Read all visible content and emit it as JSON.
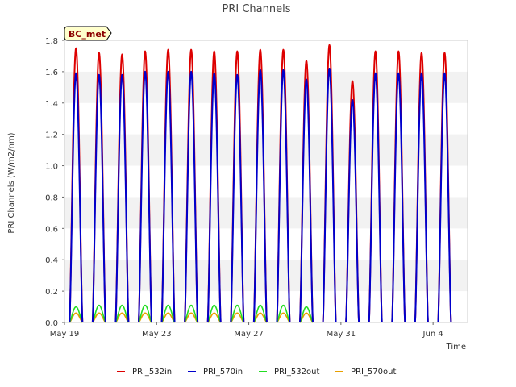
{
  "chart_data": {
    "type": "line",
    "title": "PRI Channels",
    "xlabel": "Time",
    "ylabel": "PRI Channels (W/m2/nm)",
    "site_badge": "BC_met",
    "ylim": [
      0,
      1.8
    ],
    "yticks": [
      0.0,
      0.2,
      0.4,
      0.6,
      0.8,
      1.0,
      1.2,
      1.4,
      1.6,
      1.8
    ],
    "ytick_labels": [
      "0.0",
      "0.2",
      "0.4",
      "0.6",
      "0.8",
      "1.0",
      "1.2",
      "1.4",
      "1.6",
      "1.8"
    ],
    "xlim": [
      "2024-05-19",
      "2024-06-05T12:00"
    ],
    "xticks": [
      "2024-05-19",
      "2024-05-23",
      "2024-05-27",
      "2024-05-31",
      "2024-06-04"
    ],
    "xtick_labels": [
      "May 19",
      "May 23",
      "May 27",
      "May 31",
      "Jun 4"
    ],
    "grid": "horizontal bands",
    "legend_position": "bottom",
    "colors": {
      "PRI_532in": "#dd0000",
      "PRI_570in": "#0000cc",
      "PRI_532out": "#22dd22",
      "PRI_570out": "#e8a000"
    },
    "series": [
      {
        "name": "PRI_532in",
        "daily_peaks": [
          {
            "date": "2024-05-19",
            "value": 1.75
          },
          {
            "date": "2024-05-20",
            "value": 1.72
          },
          {
            "date": "2024-05-21",
            "value": 1.71
          },
          {
            "date": "2024-05-22",
            "value": 1.73
          },
          {
            "date": "2024-05-23",
            "value": 1.74
          },
          {
            "date": "2024-05-24",
            "value": 1.74
          },
          {
            "date": "2024-05-25",
            "value": 1.73
          },
          {
            "date": "2024-05-26",
            "value": 1.73
          },
          {
            "date": "2024-05-27",
            "value": 1.74
          },
          {
            "date": "2024-05-28",
            "value": 1.74
          },
          {
            "date": "2024-05-29",
            "value": 1.67
          },
          {
            "date": "2024-05-30",
            "value": 1.77
          },
          {
            "date": "2024-05-31",
            "value": 1.54
          },
          {
            "date": "2024-06-01",
            "value": 1.73
          },
          {
            "date": "2024-06-02",
            "value": 1.73
          },
          {
            "date": "2024-06-03",
            "value": 1.72
          },
          {
            "date": "2024-06-04",
            "value": 1.72
          }
        ]
      },
      {
        "name": "PRI_570in",
        "daily_peaks": [
          {
            "date": "2024-05-19",
            "value": 1.59
          },
          {
            "date": "2024-05-20",
            "value": 1.58
          },
          {
            "date": "2024-05-21",
            "value": 1.58
          },
          {
            "date": "2024-05-22",
            "value": 1.6
          },
          {
            "date": "2024-05-23",
            "value": 1.6
          },
          {
            "date": "2024-05-24",
            "value": 1.6
          },
          {
            "date": "2024-05-25",
            "value": 1.59
          },
          {
            "date": "2024-05-26",
            "value": 1.58
          },
          {
            "date": "2024-05-27",
            "value": 1.61
          },
          {
            "date": "2024-05-28",
            "value": 1.61
          },
          {
            "date": "2024-05-29",
            "value": 1.55
          },
          {
            "date": "2024-05-30",
            "value": 1.62
          },
          {
            "date": "2024-05-31",
            "value": 1.42
          },
          {
            "date": "2024-06-01",
            "value": 1.59
          },
          {
            "date": "2024-06-02",
            "value": 1.59
          },
          {
            "date": "2024-06-03",
            "value": 1.59
          },
          {
            "date": "2024-06-04",
            "value": 1.59
          }
        ]
      },
      {
        "name": "PRI_532out",
        "daily_peaks": [
          {
            "date": "2024-05-19",
            "value": 0.1
          },
          {
            "date": "2024-05-20",
            "value": 0.11
          },
          {
            "date": "2024-05-21",
            "value": 0.11
          },
          {
            "date": "2024-05-22",
            "value": 0.11
          },
          {
            "date": "2024-05-23",
            "value": 0.11
          },
          {
            "date": "2024-05-24",
            "value": 0.11
          },
          {
            "date": "2024-05-25",
            "value": 0.11
          },
          {
            "date": "2024-05-26",
            "value": 0.11
          },
          {
            "date": "2024-05-27",
            "value": 0.11
          },
          {
            "date": "2024-05-28",
            "value": 0.11
          },
          {
            "date": "2024-05-29",
            "value": 0.1
          }
        ]
      },
      {
        "name": "PRI_570out",
        "daily_peaks": [
          {
            "date": "2024-05-19",
            "value": 0.06
          },
          {
            "date": "2024-05-20",
            "value": 0.06
          },
          {
            "date": "2024-05-21",
            "value": 0.06
          },
          {
            "date": "2024-05-22",
            "value": 0.06
          },
          {
            "date": "2024-05-23",
            "value": 0.06
          },
          {
            "date": "2024-05-24",
            "value": 0.06
          },
          {
            "date": "2024-05-25",
            "value": 0.06
          },
          {
            "date": "2024-05-26",
            "value": 0.06
          },
          {
            "date": "2024-05-27",
            "value": 0.06
          },
          {
            "date": "2024-05-28",
            "value": 0.06
          },
          {
            "date": "2024-05-29",
            "value": 0.06
          }
        ]
      }
    ]
  }
}
